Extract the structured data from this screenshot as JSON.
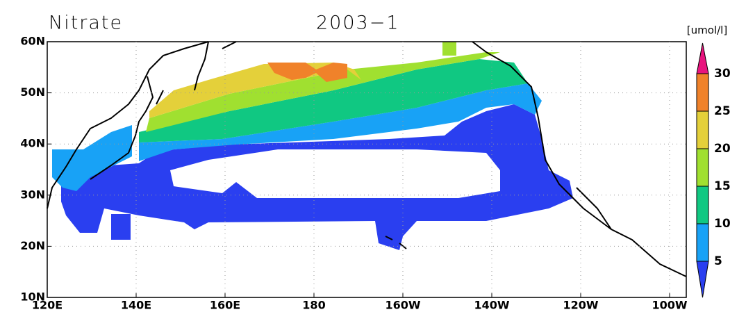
{
  "title": "Nitrate",
  "date": "2003−1",
  "unit": "[umol/l]",
  "lat_labels": [
    "60N",
    "50N",
    "40N",
    "30N",
    "20N",
    "10N"
  ],
  "lon_labels": [
    "120E",
    "140E",
    "160E",
    "180",
    "160W",
    "140W",
    "120W",
    "100W"
  ],
  "colorbar": {
    "levels": [
      5,
      10,
      15,
      20,
      25,
      30
    ],
    "colors": [
      "#2a3ff0",
      "#18a2f6",
      "#10c882",
      "#a0e030",
      "#e4d03a",
      "#f0822a",
      "#e8147e"
    ]
  }
}
